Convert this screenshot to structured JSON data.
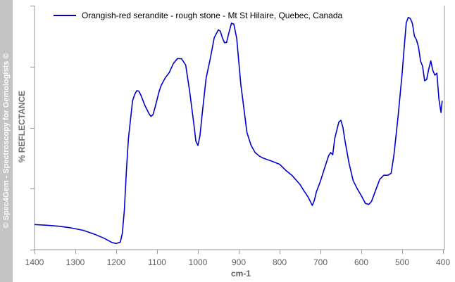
{
  "watermark": "© Spec4Gem - Spectroscopy for Gemologists ©",
  "chart_data": {
    "type": "line",
    "title": "",
    "xlabel": "cm-1",
    "ylabel": "% REFLECTANCE",
    "xlim": [
      1400,
      400
    ],
    "ylim": [
      0,
      100
    ],
    "x_reversed": true,
    "x_ticks": [
      1400,
      1300,
      1200,
      1100,
      1000,
      900,
      800,
      700,
      600,
      500,
      400
    ],
    "y_ticks_labeled": false,
    "grid": false,
    "legend_position": "top-left",
    "series": [
      {
        "name": "Orangish-red serandite - rough stone - Mt St Hilaire, Quebec, Canada",
        "color": "#0000cc",
        "points": [
          [
            1400,
            10.3
          ],
          [
            1370,
            10.0
          ],
          [
            1340,
            9.6
          ],
          [
            1310,
            8.9
          ],
          [
            1280,
            7.9
          ],
          [
            1250,
            6.1
          ],
          [
            1230,
            4.7
          ],
          [
            1210,
            2.9
          ],
          [
            1200,
            2.5
          ],
          [
            1190,
            3.1
          ],
          [
            1185,
            6.7
          ],
          [
            1180,
            16.4
          ],
          [
            1175,
            32.6
          ],
          [
            1170,
            45.7
          ],
          [
            1165,
            53.3
          ],
          [
            1160,
            61.0
          ],
          [
            1155,
            63.5
          ],
          [
            1150,
            65.1
          ],
          [
            1145,
            65.0
          ],
          [
            1140,
            63.5
          ],
          [
            1130,
            59.2
          ],
          [
            1120,
            55.8
          ],
          [
            1115,
            54.6
          ],
          [
            1110,
            55.3
          ],
          [
            1105,
            58.2
          ],
          [
            1095,
            64.8
          ],
          [
            1090,
            67.3
          ],
          [
            1080,
            70.4
          ],
          [
            1070,
            72.6
          ],
          [
            1060,
            76.3
          ],
          [
            1050,
            78.3
          ],
          [
            1040,
            78.2
          ],
          [
            1030,
            75.7
          ],
          [
            1020,
            64.6
          ],
          [
            1010,
            51.5
          ],
          [
            1005,
            44.5
          ],
          [
            1000,
            42.7
          ],
          [
            995,
            46.7
          ],
          [
            990,
            54.9
          ],
          [
            980,
            70.2
          ],
          [
            970,
            78.1
          ],
          [
            960,
            86.9
          ],
          [
            950,
            90.1
          ],
          [
            945,
            89.5
          ],
          [
            940,
            86.7
          ],
          [
            935,
            84.8
          ],
          [
            930,
            84.9
          ],
          [
            925,
            88.3
          ],
          [
            918,
            92.8
          ],
          [
            912,
            92.4
          ],
          [
            905,
            86.5
          ],
          [
            900,
            77.1
          ],
          [
            895,
            67.7
          ],
          [
            890,
            61.2
          ],
          [
            880,
            48.0
          ],
          [
            870,
            42.8
          ],
          [
            860,
            39.8
          ],
          [
            850,
            38.4
          ],
          [
            840,
            37.5
          ],
          [
            820,
            36.3
          ],
          [
            800,
            35.0
          ],
          [
            785,
            32.5
          ],
          [
            770,
            30.5
          ],
          [
            750,
            26.7
          ],
          [
            740,
            24.0
          ],
          [
            730,
            21.5
          ],
          [
            720,
            18.1
          ],
          [
            715,
            20.2
          ],
          [
            710,
            23.7
          ],
          [
            700,
            28.1
          ],
          [
            690,
            33.4
          ],
          [
            680,
            38.5
          ],
          [
            675,
            39.8
          ],
          [
            670,
            38.9
          ],
          [
            665,
            45.6
          ],
          [
            655,
            52.3
          ],
          [
            650,
            53.0
          ],
          [
            645,
            50.1
          ],
          [
            640,
            44.6
          ],
          [
            630,
            35.4
          ],
          [
            620,
            28.3
          ],
          [
            610,
            25.0
          ],
          [
            600,
            22.1
          ],
          [
            590,
            19.0
          ],
          [
            582,
            18.5
          ],
          [
            575,
            19.8
          ],
          [
            565,
            24.3
          ],
          [
            555,
            28.8
          ],
          [
            545,
            30.5
          ],
          [
            535,
            30.5
          ],
          [
            527,
            31.3
          ],
          [
            520,
            39.0
          ],
          [
            510,
            54.6
          ],
          [
            500,
            72.4
          ],
          [
            495,
            83.0
          ],
          [
            490,
            93.0
          ],
          [
            485,
            95.2
          ],
          [
            480,
            94.7
          ],
          [
            475,
            92.7
          ],
          [
            470,
            87.5
          ],
          [
            465,
            86.0
          ],
          [
            460,
            83.0
          ],
          [
            455,
            77.3
          ],
          [
            450,
            75.1
          ],
          [
            445,
            69.2
          ],
          [
            440,
            69.8
          ],
          [
            435,
            74.0
          ],
          [
            430,
            77.4
          ],
          [
            425,
            73.5
          ],
          [
            420,
            71.5
          ],
          [
            415,
            72.3
          ],
          [
            410,
            61.6
          ],
          [
            405,
            56.2
          ],
          [
            402,
            61.0
          ]
        ]
      }
    ]
  }
}
